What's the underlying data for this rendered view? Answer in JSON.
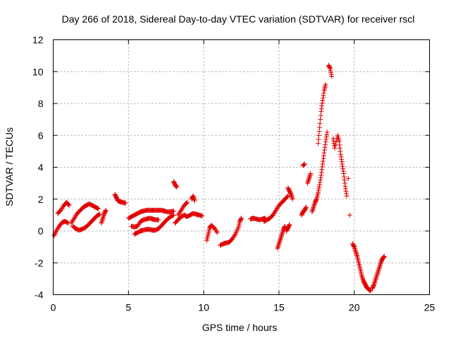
{
  "chart_data": {
    "type": "scatter",
    "title": "Day 266 of 2018, Sidereal Day-to-day VTEC variation (SDTVAR) for receiver rscl",
    "xlabel": "GPS time / hours",
    "ylabel": "SDTVAR / TECUs",
    "xlim": [
      0,
      25
    ],
    "ylim": [
      -4,
      12
    ],
    "xticks": [
      "0",
      "5",
      "10",
      "15",
      "20",
      "25"
    ],
    "yticks": [
      "-4",
      "-2",
      "0",
      "2",
      "4",
      "6",
      "8",
      "10",
      "12"
    ],
    "grid": true,
    "marker": "plus",
    "color": "#e00000",
    "segments": [
      [
        [
          0.05,
          -0.3
        ],
        [
          0.2,
          0.0
        ],
        [
          0.4,
          0.3
        ],
        [
          0.6,
          0.55
        ],
        [
          0.8,
          0.6
        ],
        [
          1.0,
          0.5
        ]
      ],
      [
        [
          0.3,
          1.1
        ],
        [
          0.5,
          1.3
        ],
        [
          0.7,
          1.6
        ],
        [
          0.9,
          1.8
        ],
        [
          1.05,
          1.6
        ]
      ],
      [
        [
          1.2,
          0.5
        ],
        [
          1.4,
          0.8
        ],
        [
          1.6,
          1.1
        ],
        [
          1.8,
          1.3
        ],
        [
          2.0,
          1.5
        ],
        [
          2.2,
          1.6
        ],
        [
          2.4,
          1.7
        ],
        [
          2.6,
          1.6
        ],
        [
          2.8,
          1.5
        ],
        [
          3.0,
          1.4
        ]
      ],
      [
        [
          1.3,
          0.3
        ],
        [
          1.5,
          0.15
        ],
        [
          1.7,
          0.05
        ],
        [
          1.9,
          0.1
        ],
        [
          2.1,
          0.2
        ],
        [
          2.3,
          0.35
        ],
        [
          2.5,
          0.55
        ],
        [
          2.7,
          0.75
        ],
        [
          2.9,
          0.95
        ],
        [
          3.1,
          1.05
        ]
      ],
      [
        [
          3.2,
          0.5
        ],
        [
          3.3,
          0.8
        ],
        [
          3.4,
          1.1
        ],
        [
          3.5,
          1.3
        ]
      ],
      [
        [
          4.1,
          2.3
        ],
        [
          4.2,
          2.1
        ],
        [
          4.3,
          1.9
        ],
        [
          4.4,
          1.85
        ],
        [
          4.6,
          1.8
        ],
        [
          4.8,
          1.75
        ]
      ],
      [
        [
          5.0,
          0.8
        ],
        [
          5.2,
          0.9
        ],
        [
          5.4,
          1.0
        ],
        [
          5.6,
          1.1
        ],
        [
          5.8,
          1.2
        ],
        [
          6.0,
          1.25
        ],
        [
          6.2,
          1.3
        ],
        [
          6.4,
          1.3
        ],
        [
          6.6,
          1.3
        ],
        [
          6.8,
          1.3
        ],
        [
          7.0,
          1.3
        ],
        [
          7.2,
          1.3
        ],
        [
          7.4,
          1.25
        ],
        [
          7.6,
          1.2
        ],
        [
          7.8,
          1.2
        ],
        [
          8.0,
          1.25
        ]
      ],
      [
        [
          5.4,
          -0.2
        ],
        [
          5.6,
          -0.1
        ],
        [
          5.8,
          0.0
        ],
        [
          6.0,
          0.05
        ],
        [
          6.2,
          0.1
        ],
        [
          6.4,
          0.1
        ],
        [
          6.6,
          0.05
        ],
        [
          6.8,
          0.05
        ],
        [
          7.0,
          0.15
        ],
        [
          7.2,
          0.35
        ],
        [
          7.4,
          0.55
        ],
        [
          7.6,
          0.75
        ],
        [
          7.8,
          0.9
        ],
        [
          8.0,
          1.0
        ]
      ],
      [
        [
          5.2,
          0.3
        ],
        [
          5.4,
          0.25
        ],
        [
          5.6,
          0.3
        ],
        [
          5.8,
          0.6
        ],
        [
          6.0,
          0.7
        ],
        [
          6.2,
          0.75
        ],
        [
          6.4,
          0.8
        ],
        [
          6.6,
          0.75
        ],
        [
          6.8,
          0.7
        ],
        [
          7.0,
          0.7
        ]
      ],
      [
        [
          8.0,
          3.1
        ],
        [
          8.1,
          2.9
        ],
        [
          8.2,
          2.75
        ]
      ],
      [
        [
          8.3,
          1.0
        ],
        [
          8.5,
          1.3
        ],
        [
          8.7,
          1.6
        ],
        [
          8.9,
          1.8
        ]
      ],
      [
        [
          8.1,
          0.5
        ],
        [
          8.3,
          0.7
        ],
        [
          8.5,
          0.9
        ],
        [
          8.7,
          1.0
        ],
        [
          8.9,
          0.9
        ],
        [
          9.1,
          1.0
        ],
        [
          9.3,
          1.1
        ],
        [
          9.5,
          1.05
        ],
        [
          9.7,
          1.0
        ],
        [
          9.9,
          0.95
        ]
      ],
      [
        [
          9.2,
          2.0
        ],
        [
          9.3,
          2.2
        ],
        [
          9.4,
          1.9
        ]
      ],
      [
        [
          10.2,
          -0.6
        ],
        [
          10.3,
          -0.2
        ],
        [
          10.4,
          0.2
        ],
        [
          10.5,
          0.35
        ],
        [
          10.7,
          0.2
        ],
        [
          10.9,
          -0.1
        ]
      ],
      [
        [
          11.1,
          -0.9
        ],
        [
          11.3,
          -0.8
        ],
        [
          11.5,
          -0.75
        ],
        [
          11.7,
          -0.7
        ],
        [
          11.9,
          -0.5
        ],
        [
          12.1,
          -0.2
        ],
        [
          12.3,
          0.2
        ],
        [
          12.4,
          0.6
        ],
        [
          12.5,
          0.8
        ]
      ],
      [
        [
          13.1,
          0.75
        ],
        [
          13.3,
          0.8
        ],
        [
          13.5,
          0.75
        ],
        [
          13.7,
          0.7
        ],
        [
          13.9,
          0.75
        ],
        [
          14.1,
          0.8
        ]
      ],
      [
        [
          14.0,
          0.6
        ],
        [
          14.2,
          0.7
        ],
        [
          14.4,
          0.8
        ],
        [
          14.6,
          1.0
        ],
        [
          14.8,
          1.3
        ],
        [
          15.0,
          1.6
        ],
        [
          15.2,
          1.8
        ],
        [
          15.4,
          2.0
        ],
        [
          15.6,
          2.2
        ]
      ],
      [
        [
          14.9,
          -1.1
        ],
        [
          15.0,
          -0.8
        ],
        [
          15.1,
          -0.5
        ],
        [
          15.2,
          -0.2
        ],
        [
          15.3,
          0.1
        ],
        [
          15.4,
          0.3
        ]
      ],
      [
        [
          15.5,
          0.0
        ],
        [
          15.6,
          0.2
        ],
        [
          15.7,
          0.4
        ]
      ],
      [
        [
          15.6,
          2.7
        ],
        [
          15.7,
          2.5
        ],
        [
          15.8,
          2.3
        ],
        [
          15.9,
          2.0
        ]
      ],
      [
        [
          16.5,
          1.0
        ],
        [
          16.6,
          1.2
        ],
        [
          16.7,
          1.3
        ],
        [
          16.8,
          1.5
        ]
      ],
      [
        [
          16.9,
          3.0
        ],
        [
          17.0,
          3.3
        ],
        [
          17.1,
          3.6
        ]
      ],
      [
        [
          16.6,
          4.1
        ],
        [
          16.7,
          4.2
        ]
      ],
      [
        [
          17.2,
          1.2
        ],
        [
          17.3,
          1.5
        ],
        [
          17.4,
          1.8
        ],
        [
          17.5,
          2.0
        ],
        [
          17.6,
          2.4
        ],
        [
          17.7,
          2.9
        ],
        [
          17.8,
          3.5
        ],
        [
          17.9,
          4.2
        ],
        [
          18.0,
          4.9
        ],
        [
          18.1,
          5.6
        ],
        [
          18.2,
          6.2
        ]
      ],
      [
        [
          17.6,
          5.5
        ],
        [
          17.7,
          6.5
        ],
        [
          17.8,
          7.5
        ],
        [
          17.9,
          8.2
        ],
        [
          18.0,
          8.8
        ],
        [
          18.1,
          9.2
        ]
      ],
      [
        [
          18.3,
          10.4
        ],
        [
          18.4,
          10.2
        ],
        [
          18.5,
          9.7
        ]
      ],
      [
        [
          18.6,
          5.8
        ],
        [
          18.7,
          5.2
        ],
        [
          18.9,
          6.0
        ],
        [
          19.0,
          5.6
        ],
        [
          19.1,
          4.8
        ],
        [
          19.2,
          4.2
        ],
        [
          19.3,
          3.6
        ],
        [
          19.4,
          2.8
        ],
        [
          19.5,
          2.2
        ]
      ],
      [
        [
          19.6,
          3.3
        ]
      ],
      [
        [
          19.7,
          1.0
        ]
      ],
      [
        [
          19.9,
          -0.8
        ],
        [
          20.0,
          -1.0
        ],
        [
          20.1,
          -1.3
        ],
        [
          20.2,
          -1.6
        ],
        [
          20.3,
          -2.0
        ],
        [
          20.4,
          -2.4
        ],
        [
          20.5,
          -2.8
        ],
        [
          20.6,
          -3.1
        ],
        [
          20.7,
          -3.3
        ],
        [
          20.8,
          -3.5
        ],
        [
          20.9,
          -3.6
        ],
        [
          21.0,
          -3.7
        ],
        [
          21.1,
          -3.75
        ]
      ],
      [
        [
          21.2,
          -3.6
        ],
        [
          21.3,
          -3.4
        ],
        [
          21.4,
          -3.1
        ],
        [
          21.5,
          -2.8
        ],
        [
          21.6,
          -2.5
        ],
        [
          21.7,
          -2.2
        ],
        [
          21.8,
          -1.9
        ],
        [
          21.9,
          -1.7
        ],
        [
          22.0,
          -1.6
        ]
      ]
    ]
  }
}
